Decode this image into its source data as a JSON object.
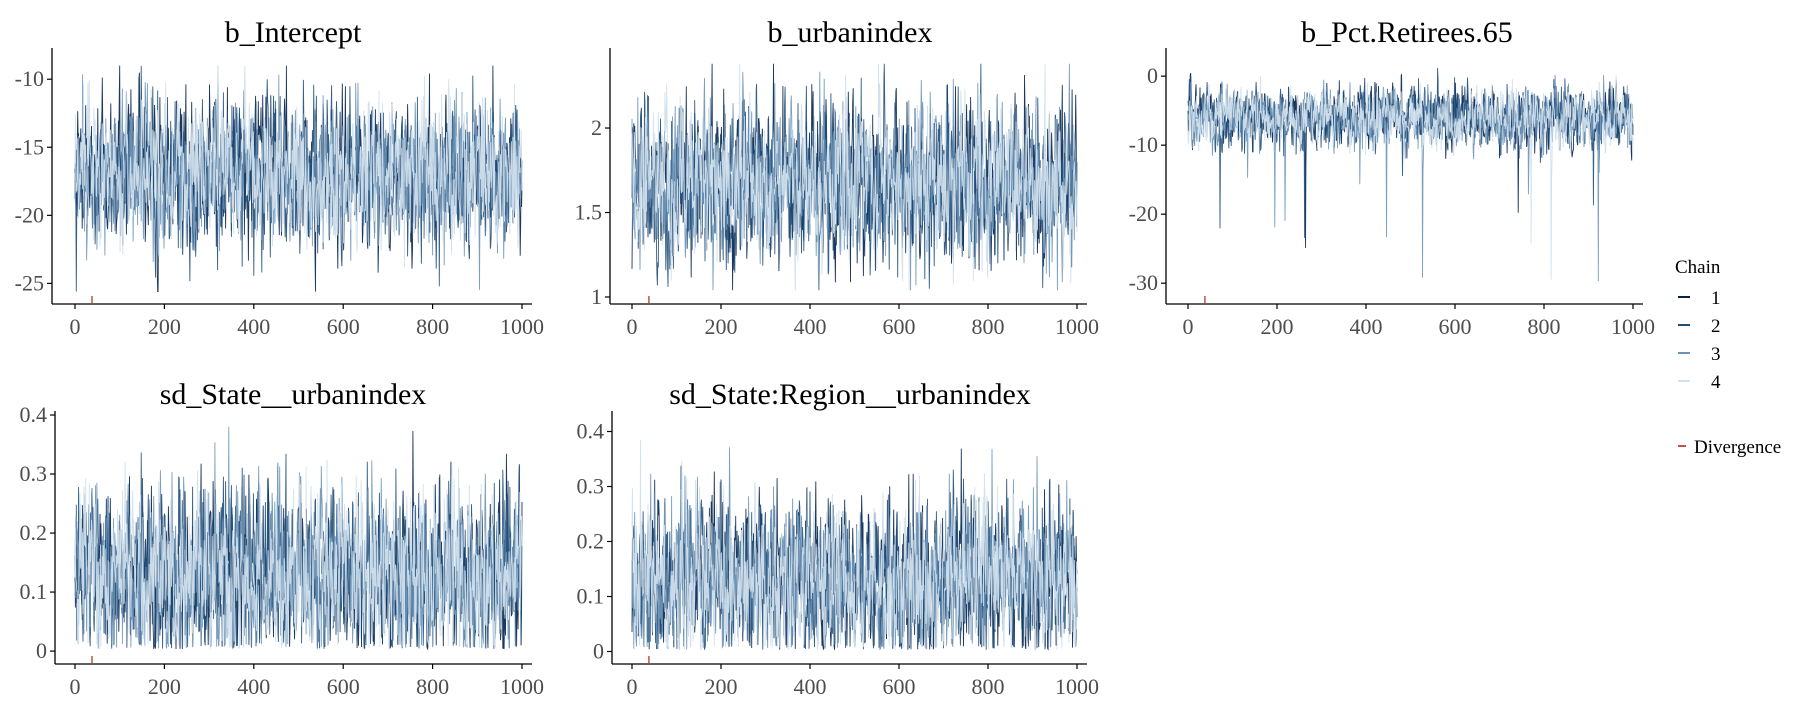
{
  "legend": {
    "title": "Chain",
    "items": [
      {
        "label": "1",
        "color": "#03224c"
      },
      {
        "label": "2",
        "color": "#1f4e79"
      },
      {
        "label": "3",
        "color": "#6d93b6"
      },
      {
        "label": "4",
        "color": "#d0dfec"
      }
    ],
    "divergence_label": "Divergence",
    "divergence_color": "#c0504d"
  },
  "chart_data": [
    {
      "type": "line",
      "title": "b_Intercept",
      "xlim": [
        0,
        1000
      ],
      "xticks": [
        0,
        200,
        400,
        600,
        800,
        1000
      ],
      "ylim": [
        -26,
        -8
      ],
      "yticks": [
        -25,
        -20,
        -15,
        -10
      ],
      "center": -17,
      "spread": 2.4,
      "min": -25.6,
      "max": -9.0,
      "divergence_iterations": [
        38
      ],
      "series": [
        {
          "name": "1",
          "color": "#03224c"
        },
        {
          "name": "2",
          "color": "#1f4e79"
        },
        {
          "name": "3",
          "color": "#6d93b6"
        },
        {
          "name": "4",
          "color": "#d0dfec"
        }
      ]
    },
    {
      "type": "line",
      "title": "b_urbanindex",
      "xlim": [
        0,
        1000
      ],
      "xticks": [
        0,
        200,
        400,
        600,
        800,
        1000
      ],
      "ylim": [
        1.0,
        2.45
      ],
      "yticks": [
        1.0,
        1.5,
        2.0
      ],
      "center": 1.68,
      "spread": 0.21,
      "min": 1.04,
      "max": 2.38,
      "divergence_iterations": [
        38
      ],
      "series": [
        {
          "name": "1",
          "color": "#03224c"
        },
        {
          "name": "2",
          "color": "#1f4e79"
        },
        {
          "name": "3",
          "color": "#6d93b6"
        },
        {
          "name": "4",
          "color": "#d0dfec"
        }
      ]
    },
    {
      "type": "line",
      "title": "b_Pct.Retirees.65",
      "xlim": [
        0,
        1000
      ],
      "xticks": [
        0,
        200,
        400,
        600,
        800,
        1000
      ],
      "ylim": [
        -32,
        3.5
      ],
      "yticks": [
        -30,
        -20,
        -10,
        0
      ],
      "center": -6,
      "spread": 2.0,
      "min": -30.5,
      "max": 2.3,
      "divergence_iterations": [
        38
      ],
      "series": [
        {
          "name": "1",
          "color": "#03224c"
        },
        {
          "name": "2",
          "color": "#1f4e79"
        },
        {
          "name": "3",
          "color": "#6d93b6"
        },
        {
          "name": "4",
          "color": "#d0dfec"
        }
      ]
    },
    {
      "type": "line",
      "title": "sd_State__urbanindex",
      "xlim": [
        0,
        1000
      ],
      "xticks": [
        0,
        200,
        400,
        600,
        800,
        1000
      ],
      "ylim": [
        -0.01,
        0.4
      ],
      "yticks": [
        0.0,
        0.1,
        0.2,
        0.3,
        0.4
      ],
      "center": 0.13,
      "spread": 0.065,
      "min": 0.003,
      "max": 0.38,
      "divergence_iterations": [
        38
      ],
      "series": [
        {
          "name": "1",
          "color": "#03224c"
        },
        {
          "name": "2",
          "color": "#1f4e79"
        },
        {
          "name": "3",
          "color": "#6d93b6"
        },
        {
          "name": "4",
          "color": "#d0dfec"
        }
      ]
    },
    {
      "type": "line",
      "title": "sd_State:Region__urbanindex",
      "xlim": [
        0,
        1000
      ],
      "xticks": [
        0,
        200,
        400,
        600,
        800,
        1000
      ],
      "ylim": [
        -0.01,
        0.43
      ],
      "yticks": [
        0.0,
        0.1,
        0.2,
        0.3,
        0.4
      ],
      "center": 0.13,
      "spread": 0.065,
      "min": 0.003,
      "max": 0.415,
      "divergence_iterations": [
        38
      ],
      "series": [
        {
          "name": "1",
          "color": "#03224c"
        },
        {
          "name": "2",
          "color": "#1f4e79"
        },
        {
          "name": "3",
          "color": "#6d93b6"
        },
        {
          "name": "4",
          "color": "#d0dfec"
        }
      ]
    }
  ]
}
